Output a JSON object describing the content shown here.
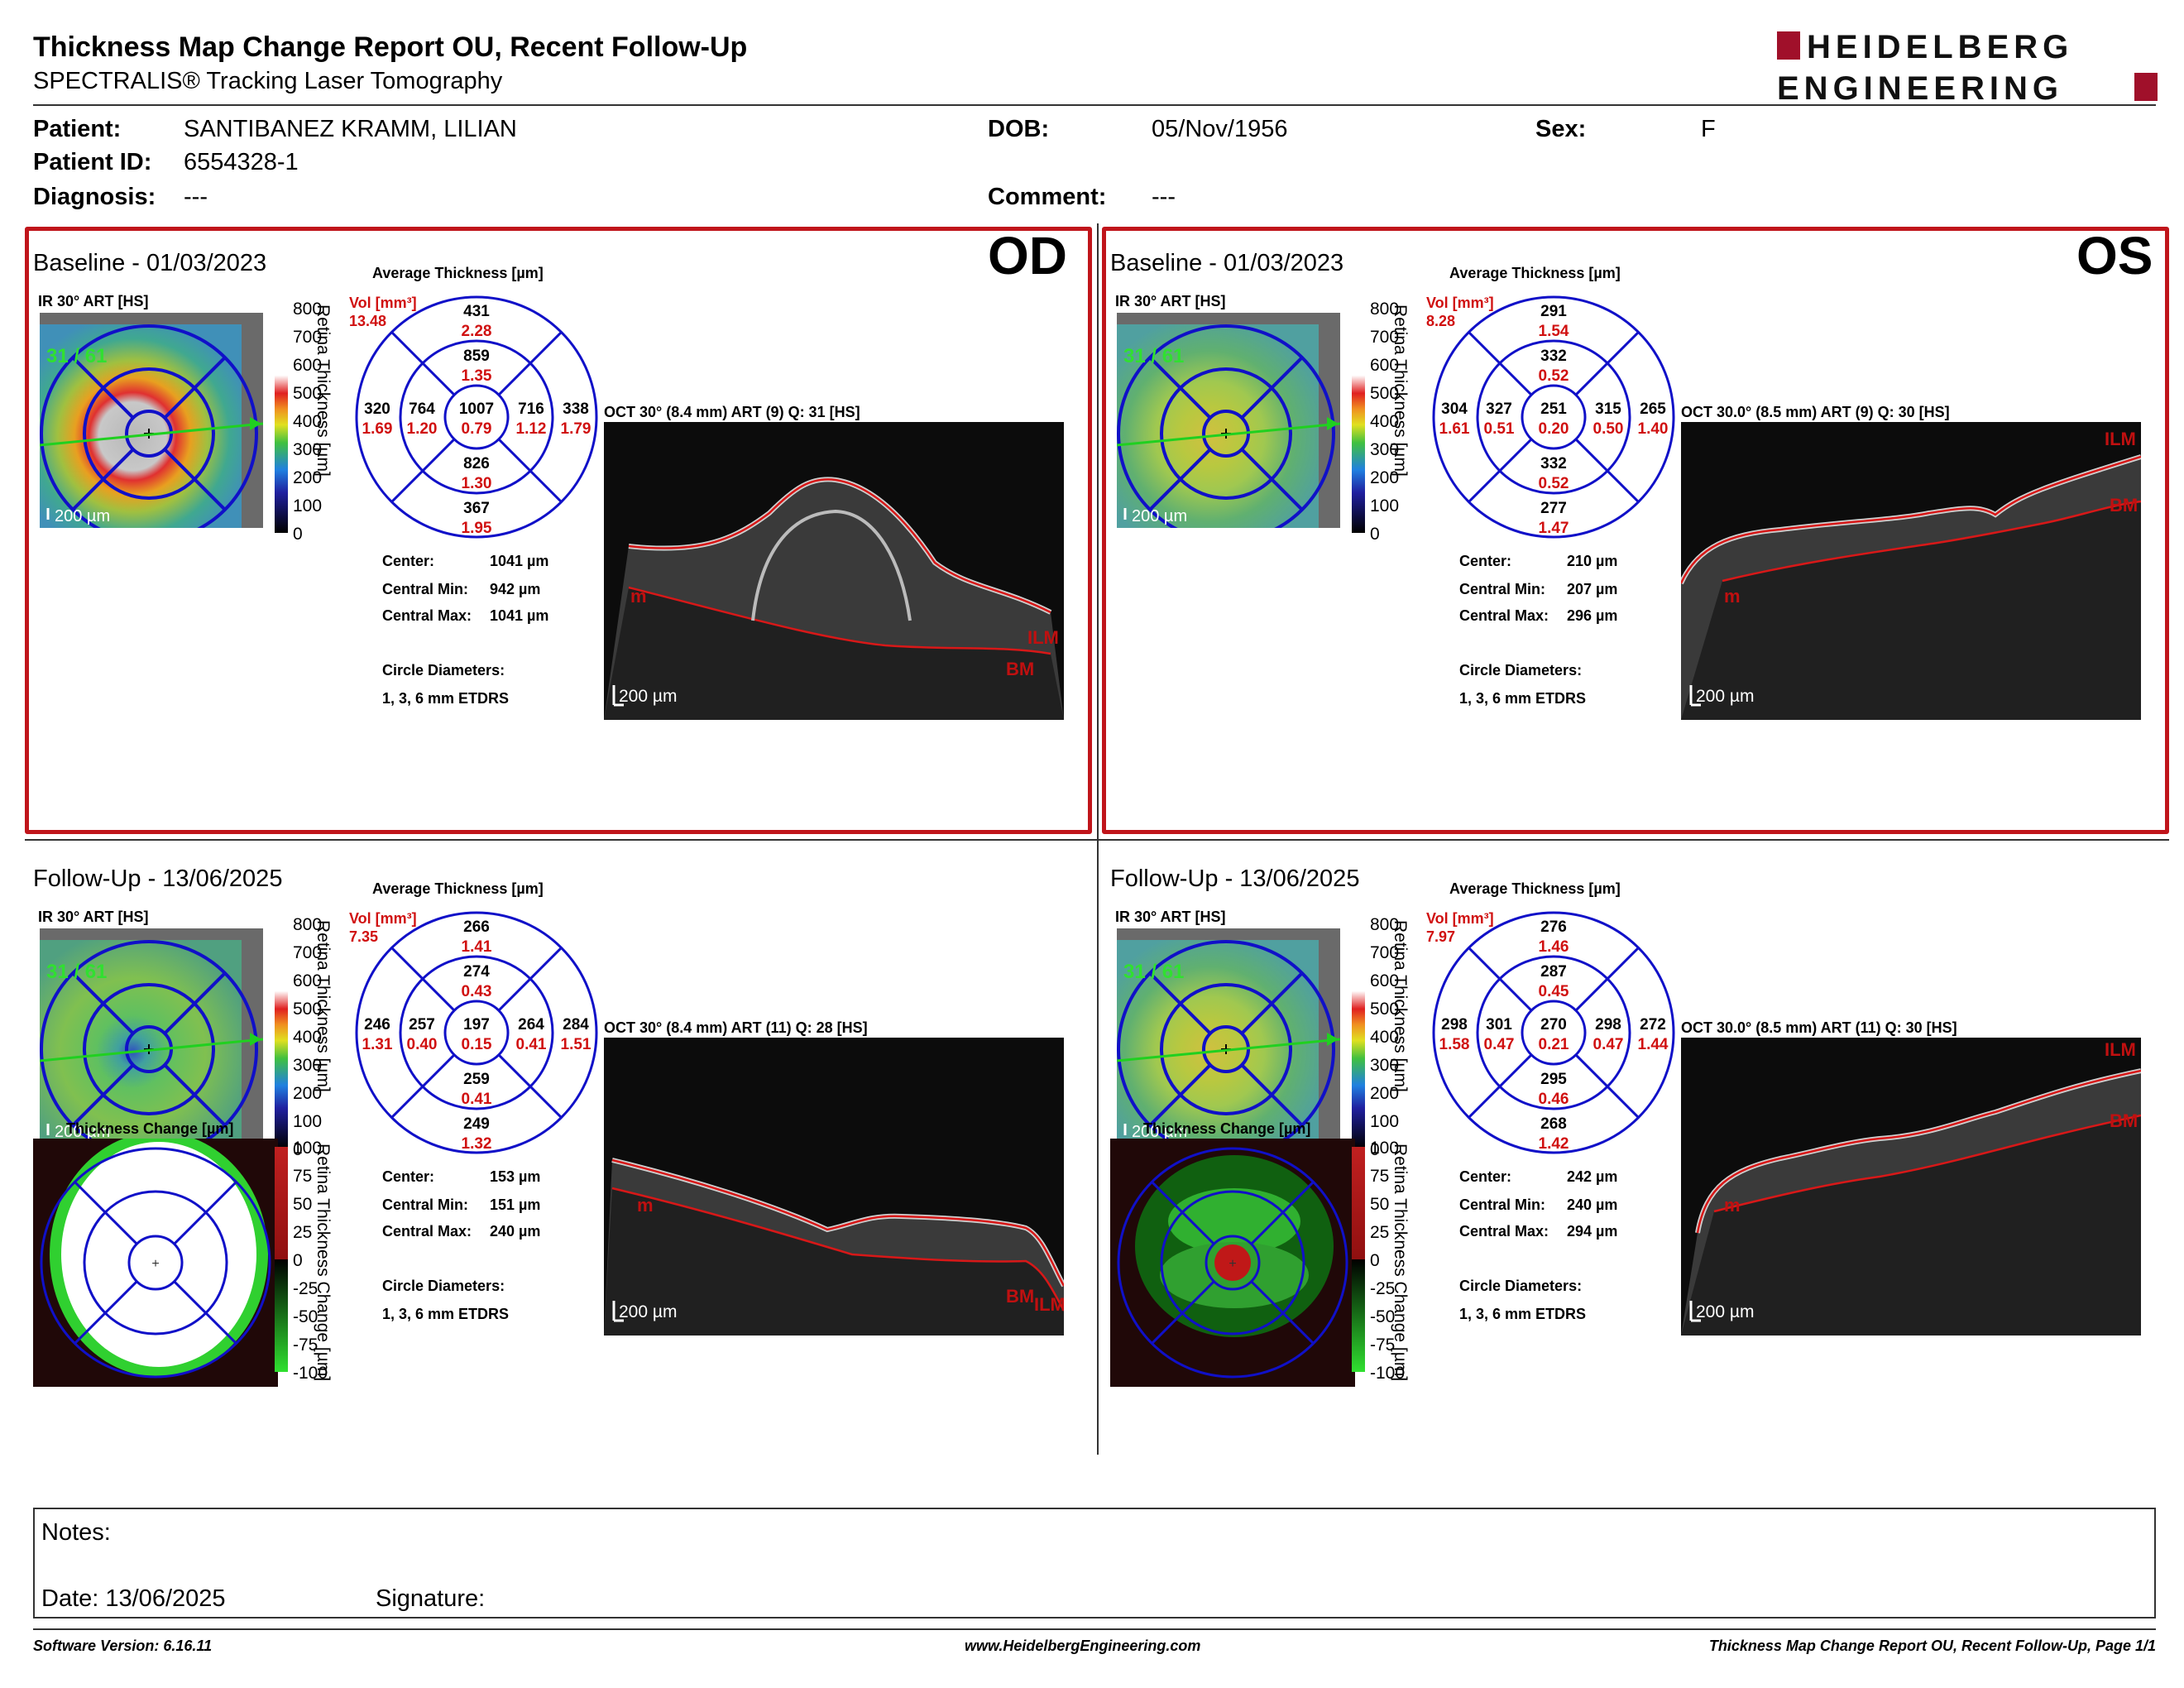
{
  "report": {
    "title": "Thickness Map Change Report OU, Recent Follow-Up",
    "subtitle": "SPECTRALIS® Tracking Laser Tomography",
    "logo_line1": "HEIDELBERG",
    "logo_line2": "ENGINEERING",
    "colors": {
      "brand_red": "#a0102a",
      "panel_border": "#c0151b",
      "grid_blue": "#1010c8",
      "value_red": "#d01010"
    }
  },
  "patient": {
    "name_label": "Patient:",
    "name": "SANTIBANEZ KRAMM, LILIAN",
    "id_label": "Patient ID:",
    "id": "6554328-1",
    "diagnosis_label": "Diagnosis:",
    "diagnosis": "---",
    "dob_label": "DOB:",
    "dob": "05/Nov/1956",
    "comment_label": "Comment:",
    "comment": "---",
    "sex_label": "Sex:",
    "sex": "F"
  },
  "common": {
    "avg_thickness_title": "Average Thickness [µm]",
    "vol_label": "Vol [mm³]",
    "ir_label": "IR 30° ART [HS]",
    "scale_bar": "200 µm",
    "retina_thickness_axis": "Retina Thickness [µm]",
    "retina_change_axis": "Retina Thickness Change [µm]",
    "thickness_change_title": "Thickness Change [µm]",
    "center_label": "Center:",
    "central_min_label": "Central Min:",
    "central_max_label": "Central Max:",
    "circle_diam_label": "Circle Diameters:",
    "circle_diam_value": "1, 3, 6 mm ETDRS",
    "thickness_ticks": [
      "800",
      "700",
      "600",
      "500",
      "400",
      "300",
      "200",
      "100",
      "0"
    ],
    "change_ticks": [
      "100",
      "75",
      "50",
      "25",
      "0",
      "-25",
      "-50",
      "-75",
      "-100"
    ],
    "ilm": "ILM",
    "bm": "BM",
    "m": "m"
  },
  "od": {
    "eye": "OD",
    "baseline": {
      "title": "Baseline - 01/03/2023",
      "quality": "31 / 61",
      "vol": "13.48",
      "grid": {
        "sup_outer": "431",
        "sup_outer_v": "2.28",
        "sup_inner": "859",
        "sup_inner_v": "1.35",
        "temp_outer": "320",
        "temp_outer_v": "1.69",
        "temp_inner": "764",
        "temp_inner_v": "1.20",
        "center": "1007",
        "center_v": "0.79",
        "nas_inner": "716",
        "nas_inner_v": "1.12",
        "nas_outer": "338",
        "nas_outer_v": "1.79",
        "inf_inner": "826",
        "inf_inner_v": "1.30",
        "inf_outer": "367",
        "inf_outer_v": "1.95"
      },
      "center_val": "1041 µm",
      "min_val": "942 µm",
      "max_val": "1041 µm",
      "oct_label": "OCT 30° (8.4 mm) ART (9) Q: 31 [HS]"
    },
    "followup": {
      "title": "Follow-Up - 13/06/2025",
      "quality": "31 / 61",
      "vol": "7.35",
      "grid": {
        "sup_outer": "266",
        "sup_outer_v": "1.41",
        "sup_inner": "274",
        "sup_inner_v": "0.43",
        "temp_outer": "246",
        "temp_outer_v": "1.31",
        "temp_inner": "257",
        "temp_inner_v": "0.40",
        "center": "197",
        "center_v": "0.15",
        "nas_inner": "264",
        "nas_inner_v": "0.41",
        "nas_outer": "284",
        "nas_outer_v": "1.51",
        "inf_inner": "259",
        "inf_inner_v": "0.41",
        "inf_outer": "249",
        "inf_outer_v": "1.32"
      },
      "center_val": "153 µm",
      "min_val": "151 µm",
      "max_val": "240 µm",
      "oct_label": "OCT 30° (8.4 mm) ART (11) Q: 28 [HS]"
    }
  },
  "os": {
    "eye": "OS",
    "baseline": {
      "title": "Baseline - 01/03/2023",
      "quality": "31 / 61",
      "vol": "8.28",
      "grid": {
        "sup_outer": "291",
        "sup_outer_v": "1.54",
        "sup_inner": "332",
        "sup_inner_v": "0.52",
        "temp_outer": "304",
        "temp_outer_v": "1.61",
        "temp_inner": "327",
        "temp_inner_v": "0.51",
        "center": "251",
        "center_v": "0.20",
        "nas_inner": "315",
        "nas_inner_v": "0.50",
        "nas_outer": "265",
        "nas_outer_v": "1.40",
        "inf_inner": "332",
        "inf_inner_v": "0.52",
        "inf_outer": "277",
        "inf_outer_v": "1.47"
      },
      "center_val": "210 µm",
      "min_val": "207 µm",
      "max_val": "296 µm",
      "oct_label": "OCT 30.0° (8.5 mm) ART (9) Q: 30 [HS]"
    },
    "followup": {
      "title": "Follow-Up - 13/06/2025",
      "quality": "31 / 61",
      "vol": "7.97",
      "grid": {
        "sup_outer": "276",
        "sup_outer_v": "1.46",
        "sup_inner": "287",
        "sup_inner_v": "0.45",
        "temp_outer": "298",
        "temp_outer_v": "1.58",
        "temp_inner": "301",
        "temp_inner_v": "0.47",
        "center": "270",
        "center_v": "0.21",
        "nas_inner": "298",
        "nas_inner_v": "0.47",
        "nas_outer": "272",
        "nas_outer_v": "1.44",
        "inf_inner": "295",
        "inf_inner_v": "0.46",
        "inf_outer": "268",
        "inf_outer_v": "1.42"
      },
      "center_val": "242 µm",
      "min_val": "240 µm",
      "max_val": "294 µm",
      "oct_label": "OCT 30.0° (8.5 mm) ART (11) Q: 30 [HS]"
    }
  },
  "notes": {
    "notes_label": "Notes:",
    "date_label": "Date: 13/06/2025",
    "signature_label": "Signature:"
  },
  "footer": {
    "software": "Software Version: 6.16.11",
    "website": "www.HeidelbergEngineering.com",
    "page": "Thickness Map Change Report OU, Recent Follow-Up, Page 1/1"
  }
}
